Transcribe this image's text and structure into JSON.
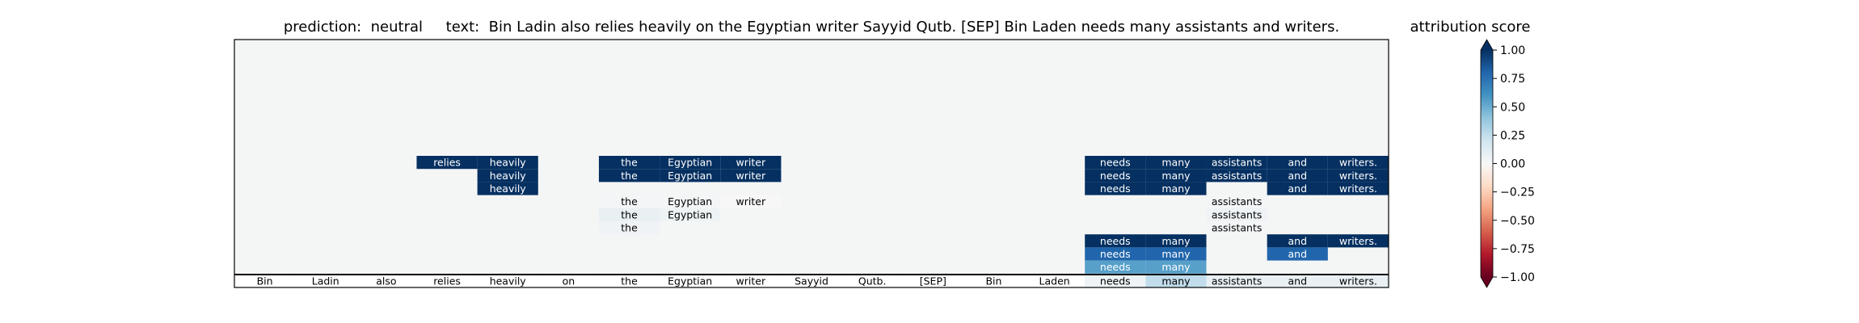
{
  "title": "prediction:  neutral     text:  Bin Ladin also relies heavily on the Egyptian writer Sayyid Qutb. [SEP] Bin Laden needs many assistants and writers.",
  "colorbar": {
    "title": "attribution score",
    "ticks": [
      1.0,
      0.75,
      0.5,
      0.25,
      0.0,
      -0.25,
      -0.5,
      -0.75,
      -1.0
    ],
    "tick_labels": [
      "1.00",
      "0.75",
      "0.50",
      "0.25",
      "0.00",
      "−0.25",
      "−0.50",
      "−0.75",
      "−1.00"
    ],
    "range": [
      -1,
      1
    ],
    "colormap": "RdBu"
  },
  "chart_data": {
    "type": "heatmap",
    "tokens": [
      "Bin",
      "Ladin",
      "also",
      "relies",
      "heavily",
      "on",
      "the",
      "Egyptian",
      "writer",
      "Sayyid",
      "Qutb.",
      "[SEP]",
      "Bin",
      "Laden",
      "needs",
      "many",
      "assistants",
      "and",
      "writers."
    ],
    "bottom_row": [
      0,
      0,
      0,
      0,
      0,
      0,
      0,
      0,
      0,
      0,
      0,
      0,
      0,
      0,
      0.05,
      0.25,
      0.08,
      0.08,
      0.08
    ],
    "rows": [
      [
        null,
        null,
        null,
        1,
        1,
        null,
        1,
        1,
        1,
        null,
        null,
        null,
        null,
        null,
        1,
        1,
        1,
        1,
        1
      ],
      [
        null,
        null,
        null,
        null,
        1,
        null,
        1,
        1,
        1,
        null,
        null,
        null,
        null,
        null,
        1,
        1,
        1,
        1,
        1
      ],
      [
        null,
        null,
        null,
        null,
        1,
        null,
        null,
        null,
        null,
        null,
        null,
        null,
        null,
        null,
        1,
        1,
        null,
        1,
        1
      ],
      [
        null,
        null,
        null,
        null,
        null,
        null,
        0.02,
        0.02,
        0.0,
        null,
        null,
        null,
        null,
        null,
        null,
        null,
        0.02,
        null,
        null
      ],
      [
        null,
        null,
        null,
        null,
        null,
        null,
        0.08,
        0.05,
        null,
        null,
        null,
        null,
        null,
        null,
        null,
        null,
        0.04,
        null,
        null
      ],
      [
        null,
        null,
        null,
        null,
        null,
        null,
        0.04,
        null,
        null,
        null,
        null,
        null,
        null,
        null,
        null,
        null,
        0.02,
        null,
        null
      ],
      [
        null,
        null,
        null,
        null,
        null,
        null,
        null,
        null,
        null,
        null,
        null,
        null,
        null,
        null,
        1,
        1,
        null,
        1,
        1
      ],
      [
        null,
        null,
        null,
        null,
        null,
        null,
        null,
        null,
        null,
        null,
        null,
        null,
        null,
        null,
        0.8,
        0.8,
        null,
        0.8,
        null
      ],
      [
        null,
        null,
        null,
        null,
        null,
        null,
        null,
        null,
        null,
        null,
        null,
        null,
        null,
        null,
        0.55,
        0.55,
        null,
        null,
        null
      ]
    ]
  }
}
